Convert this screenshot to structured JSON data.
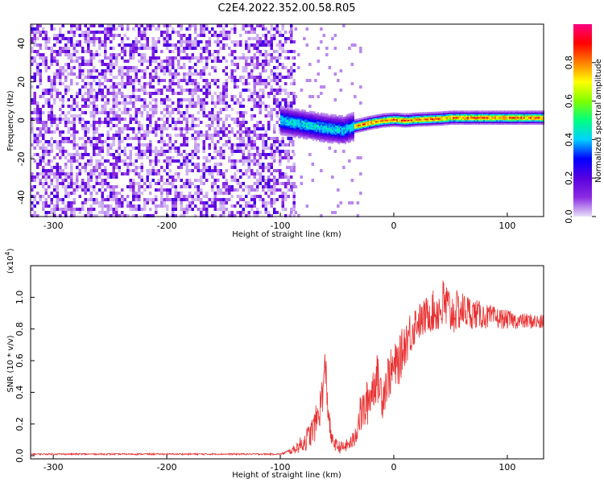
{
  "figure": {
    "title": "C2E4.2022.352.00.58.R05"
  },
  "chart_data": [
    {
      "type": "heatmap",
      "xlabel": "Height of straight line (km)",
      "ylabel": "Frequency (Hz)",
      "xlim": [
        -320,
        132
      ],
      "ylim": [
        -50,
        50
      ],
      "xticks": [
        -300,
        -200,
        -100,
        0,
        100
      ],
      "yticks": [
        -40,
        -20,
        0,
        20,
        40
      ],
      "colorbar": {
        "label": "Normalized spectral amplitude",
        "range": [
          0.0,
          1.0
        ],
        "ticks": [
          0.0,
          0.2,
          0.4,
          0.6,
          0.8
        ],
        "tick_labels": [
          "0.0",
          "0.2",
          "0.4",
          "0.6",
          "0.8"
        ],
        "colormap": [
          "#e8e0f8",
          "#8a2be2",
          "#5a00e0",
          "#0000ff",
          "#00d0ff",
          "#00ff80",
          "#80ff00",
          "#ffff00",
          "#ff8000",
          "#ff0000",
          "#ff0080"
        ]
      },
      "regions": [
        {
          "name": "noise",
          "x_range": [
            -320,
            -88
          ],
          "freq_range": [
            -50,
            50
          ],
          "amplitude": 0.12
        },
        {
          "name": "transition",
          "x_range": [
            -100,
            -35
          ],
          "freq_center": -3,
          "freq_halfwidth": 6,
          "amplitude": 0.45
        },
        {
          "name": "signal",
          "x_range": [
            -35,
            132
          ],
          "freq_center": 0.5,
          "freq_halfwidth": 2.5,
          "amplitude": 0.85
        }
      ],
      "ridge": {
        "x": [
          -100,
          -80,
          -60,
          -45,
          -35,
          -20,
          -10,
          0,
          10,
          20,
          40,
          50,
          60,
          80,
          100,
          132
        ],
        "freq": [
          0,
          -2,
          -4,
          -5,
          -3,
          -1,
          0,
          0.5,
          0,
          0.5,
          1,
          1.5,
          1.5,
          1.5,
          1.5,
          1.5
        ]
      }
    },
    {
      "type": "line",
      "xlabel": "Height of straight line (km)",
      "ylabel": "SNR (10 * v/v)",
      "y_scale_label": "(x10",
      "y_scale_exponent": "4",
      "y_scale_suffix": ")",
      "xlim": [
        -320,
        132
      ],
      "ylim": [
        -0.02,
        1.2
      ],
      "xticks": [
        -300,
        -200,
        -100,
        0,
        100
      ],
      "yticks": [
        0.0,
        0.2,
        0.4,
        0.6,
        0.8,
        1.0
      ],
      "ytick_labels": [
        "0.0",
        "0.2",
        "0.4",
        "0.6",
        "0.8",
        "1.0"
      ],
      "series": [
        {
          "color": "#e83030",
          "x": [
            -320,
            -100,
            -90,
            -80,
            -75,
            -70,
            -65,
            -62,
            -60,
            -58,
            -55,
            -50,
            -45,
            -40,
            -35,
            -30,
            -25,
            -20,
            -15,
            -10,
            -5,
            0,
            5,
            10,
            15,
            20,
            25,
            30,
            40,
            45,
            50,
            60,
            70,
            80,
            90,
            100,
            110,
            120,
            132
          ],
          "y": [
            0.01,
            0.01,
            0.03,
            0.08,
            0.12,
            0.18,
            0.3,
            0.45,
            0.55,
            0.3,
            0.1,
            0.06,
            0.05,
            0.07,
            0.1,
            0.25,
            0.3,
            0.4,
            0.5,
            0.38,
            0.5,
            0.55,
            0.6,
            0.72,
            0.78,
            0.85,
            0.85,
            0.9,
            0.92,
            0.95,
            0.9,
            0.92,
            0.9,
            0.88,
            0.87,
            0.86,
            0.85,
            0.85,
            0.84
          ],
          "amplitude_noise": [
            0.005,
            0.005,
            0.02,
            0.06,
            0.08,
            0.1,
            0.12,
            0.15,
            0.15,
            0.1,
            0.05,
            0.04,
            0.04,
            0.04,
            0.06,
            0.12,
            0.15,
            0.15,
            0.15,
            0.15,
            0.15,
            0.15,
            0.15,
            0.15,
            0.15,
            0.12,
            0.12,
            0.12,
            0.15,
            0.2,
            0.15,
            0.12,
            0.1,
            0.08,
            0.07,
            0.06,
            0.05,
            0.05,
            0.05
          ]
        }
      ]
    }
  ]
}
